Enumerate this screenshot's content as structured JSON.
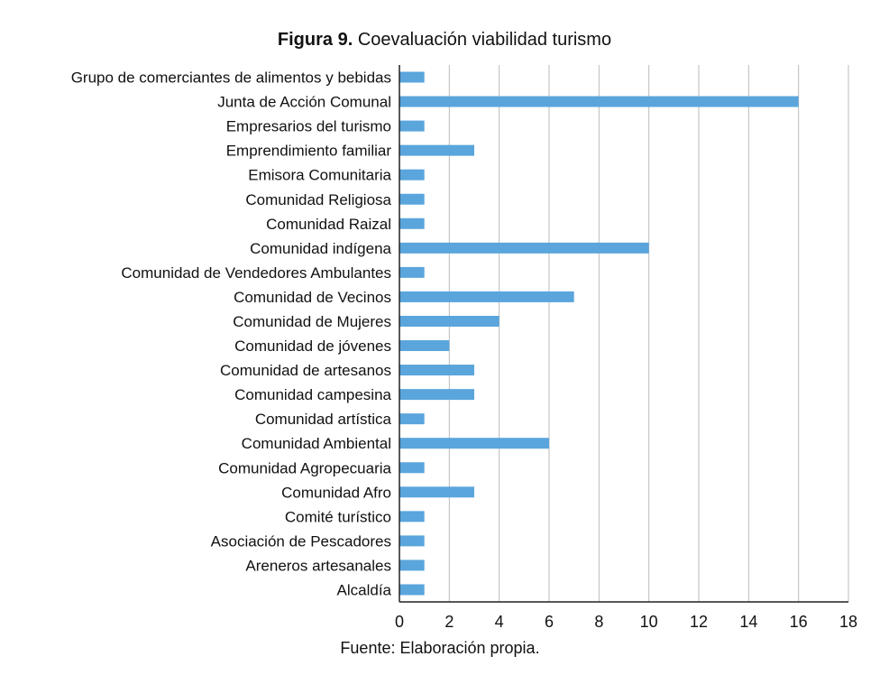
{
  "chart_data": {
    "type": "bar",
    "orientation": "horizontal",
    "title_prefix": "Figura 9.",
    "title": "Coevaluación viabilidad turismo",
    "source": "Fuente: Elaboración propia.",
    "categories": [
      "Grupo de comerciantes de alimentos y bebidas",
      "Junta de Acción Comunal",
      "Empresarios del turismo",
      "Emprendimiento familiar",
      "Emisora Comunitaria",
      "Comunidad Religiosa",
      "Comunidad Raizal",
      "Comunidad indígena",
      "Comunidad de Vendedores Ambulantes",
      "Comunidad de Vecinos",
      "Comunidad de Mujeres",
      "Comunidad de jóvenes",
      "Comunidad de artesanos",
      "Comunidad campesina",
      "Comunidad artística",
      "Comunidad Ambiental",
      "Comunidad Agropecuaria",
      "Comunidad Afro",
      "Comité turístico",
      "Asociación de Pescadores",
      "Areneros artesanales",
      "Alcaldía"
    ],
    "values": [
      1,
      16,
      1,
      3,
      1,
      1,
      1,
      10,
      1,
      7,
      4,
      2,
      3,
      3,
      1,
      6,
      1,
      3,
      1,
      1,
      1,
      1
    ],
    "xlim": [
      0,
      18
    ],
    "xticks": [
      0,
      2,
      4,
      6,
      8,
      10,
      12,
      14,
      16,
      18
    ],
    "grid": "vertical",
    "bar_color": "#5aa5dc",
    "grid_color": "#bbbbbb"
  }
}
